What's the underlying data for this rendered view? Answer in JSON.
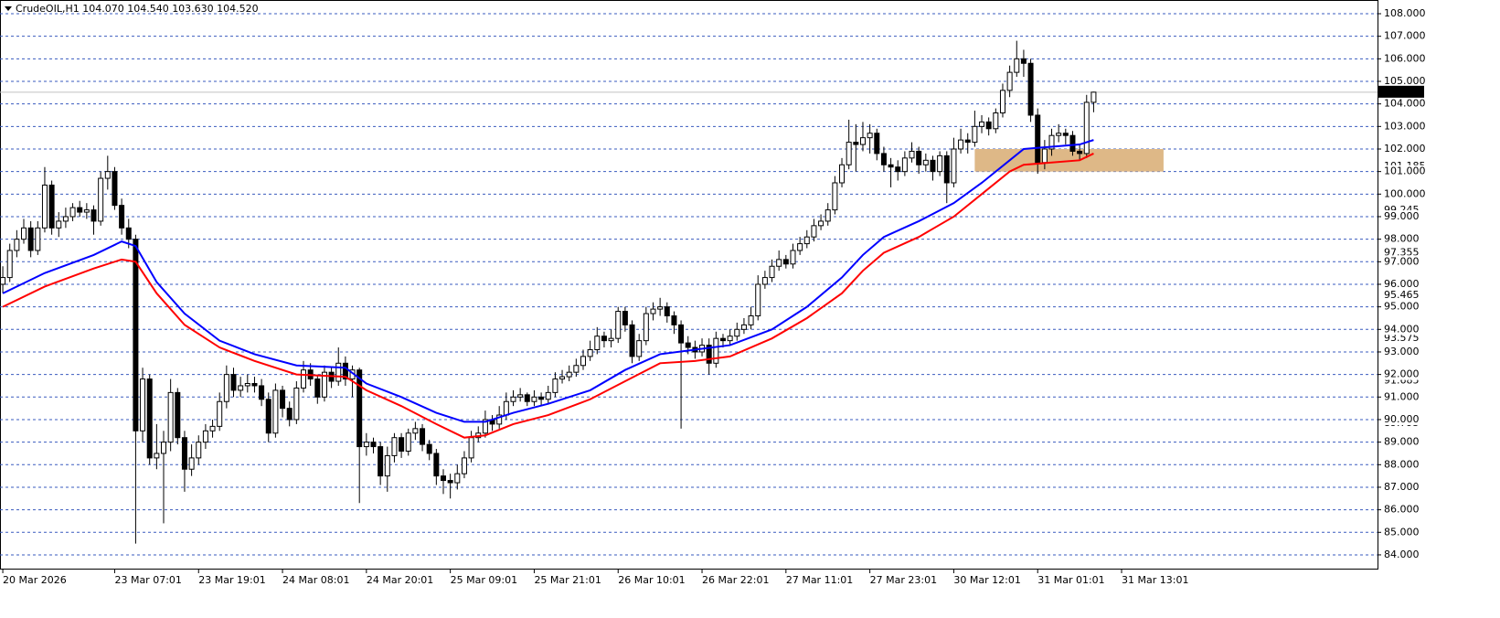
{
  "chart_data": {
    "type": "candlestick",
    "title": "CrudeOIL,H1  104.070 104.540 103.630 104.520",
    "ylim": [
      83.39,
      108.527
    ],
    "xlim": [
      -0.4,
      196.6
    ],
    "yticks": [
      {
        "value": 84,
        "label": "84.000"
      },
      {
        "value": 85,
        "label": "85.000"
      },
      {
        "value": 86,
        "label": "86.000"
      },
      {
        "value": 87,
        "label": "87.000"
      },
      {
        "value": 88,
        "label": "88.000"
      },
      {
        "value": 89,
        "label": "89.000"
      },
      {
        "value": 90,
        "label": "90.000"
      },
      {
        "value": 91,
        "label": "91.000"
      },
      {
        "value": 92,
        "label": "92.000"
      },
      {
        "value": 93,
        "label": "93.000"
      },
      {
        "value": 94,
        "label": "94.000"
      },
      {
        "value": 95,
        "label": "95.000"
      },
      {
        "value": 96,
        "label": "96.000"
      },
      {
        "value": 97,
        "label": "97.000"
      },
      {
        "value": 98,
        "label": "98.000"
      },
      {
        "value": 99,
        "label": "99.000"
      },
      {
        "value": 100,
        "label": "100.000"
      },
      {
        "value": 101,
        "label": "101.000"
      },
      {
        "value": 102,
        "label": "102.000"
      },
      {
        "value": 103,
        "label": "103.000"
      },
      {
        "value": 104,
        "label": "104.000"
      },
      {
        "value": 105,
        "label": "105.000"
      },
      {
        "value": 106,
        "label": "106.000"
      },
      {
        "value": 107,
        "label": "107.000"
      },
      {
        "value": 108,
        "label": "108.000"
      }
    ],
    "levels": [
      101.185,
      99.245,
      97.355,
      95.465,
      93.575,
      91.685,
      89.795
    ],
    "last_price": {
      "value": 104.52,
      "label": "104.520"
    },
    "xticks": [
      {
        "value": 0,
        "label": "20 Mar 2026"
      },
      {
        "value": 16,
        "label": "23 Mar 07:01"
      },
      {
        "value": 28,
        "label": "23 Mar 19:01"
      },
      {
        "value": 40,
        "label": "24 Mar 08:01"
      },
      {
        "value": 52,
        "label": "24 Mar 20:01"
      },
      {
        "value": 64,
        "label": "25 Mar 09:01"
      },
      {
        "value": 76,
        "label": "25 Mar 21:01"
      },
      {
        "value": 88,
        "label": "26 Mar 10:01"
      },
      {
        "value": 100,
        "label": "26 Mar 22:01"
      },
      {
        "value": 112,
        "label": "27 Mar 11:01"
      },
      {
        "value": 124,
        "label": "27 Mar 23:01"
      },
      {
        "value": 136,
        "label": "30 Mar 12:01"
      },
      {
        "value": 148,
        "label": "31 Mar 01:01"
      },
      {
        "value": 160,
        "label": "31 Mar 13:01"
      }
    ],
    "zone": {
      "x": [
        139,
        166
      ],
      "y": [
        101,
        102
      ],
      "color": "#deb887"
    },
    "candles": [
      [
        96.0,
        96.8,
        95.6,
        96.3
      ],
      [
        96.3,
        97.8,
        96.1,
        97.5
      ],
      [
        97.5,
        98.4,
        97.2,
        98
      ],
      [
        98,
        98.9,
        97.8,
        98.5
      ],
      [
        98.5,
        98.8,
        97.2,
        97.5
      ],
      [
        97.5,
        98.8,
        97.3,
        98.5
      ],
      [
        98.5,
        101.2,
        98.3,
        100.4
      ],
      [
        100.4,
        100.6,
        98.2,
        98.5
      ],
      [
        98.5,
        99.2,
        98.1,
        98.8
      ],
      [
        98.8,
        99.4,
        98.5,
        99
      ],
      [
        99,
        99.6,
        98.8,
        99.4
      ],
      [
        99.4,
        99.7,
        99,
        99.2
      ],
      [
        99.2,
        99.6,
        98.9,
        99.3
      ],
      [
        99.3,
        99.5,
        98.2,
        98.8
      ],
      [
        98.8,
        101,
        98.6,
        100.7
      ],
      [
        100.7,
        101.7,
        100.2,
        101
      ],
      [
        101,
        101.2,
        99.3,
        99.5
      ],
      [
        99.5,
        99.8,
        98.2,
        98.5
      ],
      [
        98.5,
        98.9,
        97.6,
        98
      ],
      [
        98,
        98.2,
        84.5,
        89.5
      ],
      [
        89.5,
        92.3,
        89,
        91.8
      ],
      [
        91.8,
        92,
        88,
        88.3
      ],
      [
        88.3,
        89.8,
        87.8,
        88.5
      ],
      [
        88.5,
        89.5,
        85.4,
        89
      ],
      [
        89,
        91.8,
        88.6,
        91.2
      ],
      [
        91.2,
        91.4,
        88.9,
        89.2
      ],
      [
        89.2,
        89.5,
        86.8,
        87.8
      ],
      [
        87.8,
        88.9,
        87.5,
        88.3
      ],
      [
        88.3,
        89.3,
        88,
        89
      ],
      [
        89,
        89.8,
        88.7,
        89.5
      ],
      [
        89.5,
        90,
        89.2,
        89.7
      ],
      [
        89.7,
        91.2,
        89.5,
        90.8
      ],
      [
        90.8,
        92.4,
        90.5,
        92
      ],
      [
        92,
        92.3,
        91,
        91.3
      ],
      [
        91.3,
        91.9,
        91,
        91.5
      ],
      [
        91.5,
        92,
        91.2,
        91.6
      ],
      [
        91.6,
        91.9,
        91.2,
        91.5
      ],
      [
        91.5,
        91.8,
        90.6,
        90.9
      ],
      [
        90.9,
        91.2,
        89,
        89.4
      ],
      [
        89.4,
        91.6,
        89.2,
        91.3
      ],
      [
        91.3,
        91.5,
        90.1,
        90.5
      ],
      [
        90.5,
        90.8,
        89.7,
        90
      ],
      [
        90,
        91.7,
        89.8,
        91.4
      ],
      [
        91.4,
        92.6,
        91.2,
        92.2
      ],
      [
        92.2,
        92.5,
        91.5,
        91.8
      ],
      [
        91.8,
        92,
        90.7,
        91
      ],
      [
        91,
        92.4,
        90.8,
        92.1
      ],
      [
        92.1,
        92.3,
        91.4,
        91.7
      ],
      [
        91.7,
        93.2,
        91.5,
        92.5
      ],
      [
        92.5,
        92.8,
        91.5,
        91.8
      ],
      [
        91.8,
        92.4,
        91,
        92.2
      ],
      [
        92.2,
        92.3,
        86.3,
        88.8
      ],
      [
        88.8,
        89.4,
        88.4,
        89
      ],
      [
        89,
        89.2,
        88.5,
        88.8
      ],
      [
        88.8,
        89,
        87.1,
        87.5
      ],
      [
        87.5,
        88.8,
        86.8,
        88.4
      ],
      [
        88.4,
        89.4,
        88.1,
        89.2
      ],
      [
        89.2,
        89.4,
        88.3,
        88.6
      ],
      [
        88.6,
        89.6,
        88.4,
        89.4
      ],
      [
        89.4,
        89.9,
        89.1,
        89.6
      ],
      [
        89.6,
        89.8,
        88.6,
        88.9
      ],
      [
        88.9,
        89.1,
        88.2,
        88.5
      ],
      [
        88.5,
        88.7,
        87.1,
        87.5
      ],
      [
        87.5,
        87.8,
        86.7,
        87.3
      ],
      [
        87.3,
        87.6,
        86.5,
        87.2
      ],
      [
        87.2,
        88,
        86.9,
        87.6
      ],
      [
        87.6,
        88.6,
        87.4,
        88.3
      ],
      [
        88.3,
        89.5,
        88.1,
        89.2
      ],
      [
        89.2,
        89.7,
        89,
        89.4
      ],
      [
        89.4,
        90.4,
        89.2,
        90
      ],
      [
        90,
        90.2,
        89.5,
        89.8
      ],
      [
        89.8,
        90.6,
        89.6,
        90.2
      ],
      [
        90.2,
        91.2,
        90,
        90.8
      ],
      [
        90.8,
        91.3,
        90.6,
        91
      ],
      [
        91,
        91.4,
        90.8,
        91.1
      ],
      [
        91.1,
        91.2,
        90.6,
        90.8
      ],
      [
        90.8,
        91.3,
        90.6,
        91
      ],
      [
        91,
        91.2,
        90.6,
        90.9
      ],
      [
        90.9,
        91.5,
        90.7,
        91.2
      ],
      [
        91.2,
        92.1,
        91,
        91.8
      ],
      [
        91.8,
        92.2,
        91.6,
        91.9
      ],
      [
        91.9,
        92.4,
        91.7,
        92.1
      ],
      [
        92.1,
        92.7,
        91.9,
        92.4
      ],
      [
        92.4,
        93.1,
        92.2,
        92.8
      ],
      [
        92.8,
        93.5,
        92.6,
        93.1
      ],
      [
        93.1,
        94.1,
        92.9,
        93.7
      ],
      [
        93.7,
        93.9,
        93.2,
        93.5
      ],
      [
        93.5,
        94,
        93.2,
        93.6
      ],
      [
        93.6,
        95,
        93.4,
        94.8
      ],
      [
        94.8,
        95,
        93.9,
        94.2
      ],
      [
        94.2,
        94.4,
        92.5,
        92.8
      ],
      [
        92.8,
        93.8,
        92.6,
        93.5
      ],
      [
        93.5,
        95,
        93.3,
        94.7
      ],
      [
        94.7,
        95.2,
        94.4,
        94.9
      ],
      [
        94.9,
        95.4,
        94.6,
        95
      ],
      [
        95,
        95.2,
        94.3,
        94.6
      ],
      [
        94.6,
        94.8,
        93.8,
        94.2
      ],
      [
        94.2,
        94.4,
        89.6,
        93.4
      ],
      [
        93.4,
        93.7,
        92.9,
        93.2
      ],
      [
        93.2,
        93.5,
        92.7,
        93
      ],
      [
        93,
        93.6,
        92.8,
        93.3
      ],
      [
        93.3,
        93.6,
        92,
        92.5
      ],
      [
        92.5,
        93.9,
        92.3,
        93.6
      ],
      [
        93.6,
        93.8,
        93.2,
        93.5
      ],
      [
        93.5,
        94,
        93.3,
        93.7
      ],
      [
        93.7,
        94.3,
        93.5,
        94
      ],
      [
        94,
        94.5,
        93.8,
        94.2
      ],
      [
        94.2,
        95,
        94,
        94.6
      ],
      [
        94.6,
        96.4,
        94.4,
        96
      ],
      [
        96,
        96.6,
        95.8,
        96.3
      ],
      [
        96.3,
        97.1,
        96.1,
        96.8
      ],
      [
        96.8,
        97.5,
        96.6,
        97.1
      ],
      [
        97.1,
        97.3,
        96.7,
        96.9
      ],
      [
        96.9,
        97.8,
        96.7,
        97.5
      ],
      [
        97.5,
        98.1,
        97.3,
        97.8
      ],
      [
        97.8,
        98.4,
        97.6,
        98.1
      ],
      [
        98.1,
        98.9,
        97.9,
        98.6
      ],
      [
        98.6,
        99.1,
        98.4,
        98.8
      ],
      [
        98.8,
        99.6,
        98.6,
        99.3
      ],
      [
        99.3,
        100.8,
        99.1,
        100.5
      ],
      [
        100.5,
        101.6,
        100.3,
        101.3
      ],
      [
        101.3,
        103.3,
        101.1,
        102.3
      ],
      [
        102.3,
        103.1,
        101,
        102.2
      ],
      [
        102.2,
        103.2,
        101.9,
        102.5
      ],
      [
        102.5,
        103.1,
        101.8,
        102.7
      ],
      [
        102.7,
        102.9,
        101.5,
        101.8
      ],
      [
        101.8,
        102.1,
        101,
        101.3
      ],
      [
        101.3,
        101.6,
        100.3,
        101.2
      ],
      [
        101.2,
        101.5,
        100.6,
        101
      ],
      [
        101,
        101.9,
        100.8,
        101.6
      ],
      [
        101.6,
        102.3,
        101.4,
        101.9
      ],
      [
        101.9,
        102.1,
        100.9,
        101.3
      ],
      [
        101.3,
        101.8,
        101,
        101.5
      ],
      [
        101.5,
        101.7,
        100.6,
        101
      ],
      [
        101,
        101.9,
        100.8,
        101.7
      ],
      [
        101.7,
        101.9,
        99.6,
        100.5
      ],
      [
        100.5,
        102.5,
        100.3,
        102
      ],
      [
        102,
        102.9,
        101.8,
        102.4
      ],
      [
        102.4,
        102.7,
        101.8,
        102.3
      ],
      [
        102.3,
        103.7,
        102.1,
        103
      ],
      [
        103,
        103.5,
        102.7,
        103.2
      ],
      [
        103.2,
        103.4,
        102.6,
        102.9
      ],
      [
        102.9,
        103.8,
        102.7,
        103.6
      ],
      [
        103.6,
        104.9,
        103.4,
        104.6
      ],
      [
        104.6,
        105.7,
        104.3,
        105.4
      ],
      [
        105.4,
        106.8,
        105.2,
        106
      ],
      [
        106,
        106.4,
        105.2,
        105.8
      ],
      [
        105.8,
        106,
        103.2,
        103.5
      ],
      [
        103.5,
        103.8,
        100.9,
        101.4
      ],
      [
        101.4,
        102.4,
        101.1,
        102
      ],
      [
        102,
        102.9,
        101.7,
        102.6
      ],
      [
        102.6,
        103.1,
        102.3,
        102.7
      ],
      [
        102.7,
        102.9,
        102.2,
        102.6
      ],
      [
        102.6,
        102.8,
        101.7,
        101.9
      ],
      [
        101.9,
        102.2,
        101.5,
        101.8
      ],
      [
        101.8,
        104.4,
        101.6,
        104.07
      ],
      [
        104.07,
        104.54,
        103.63,
        104.52
      ]
    ],
    "lines": [
      {
        "color": "#0000ff",
        "x": [
          0,
          6,
          13,
          17,
          19,
          22,
          26,
          31,
          36,
          42,
          49,
          52,
          57,
          62,
          66,
          69,
          73,
          78,
          84,
          89,
          94,
          99,
          104,
          110,
          115,
          120,
          123,
          126,
          131,
          136,
          140,
          144,
          146,
          150,
          154,
          156
        ],
        "values": [
          95.6,
          96.5,
          97.3,
          97.9,
          97.7,
          96.1,
          94.7,
          93.5,
          92.9,
          92.4,
          92.3,
          91.6,
          91,
          90.3,
          89.9,
          89.9,
          90.3,
          90.7,
          91.3,
          92.2,
          92.9,
          93.1,
          93.3,
          94,
          95,
          96.3,
          97.3,
          98.1,
          98.8,
          99.6,
          100.5,
          101.5,
          102,
          102.1,
          102.2,
          102.4
        ]
      },
      {
        "color": "#ff0000",
        "x": [
          0,
          6,
          13,
          17,
          19,
          22,
          26,
          31,
          36,
          42,
          49,
          52,
          57,
          62,
          66,
          69,
          73,
          78,
          84,
          89,
          94,
          99,
          104,
          110,
          115,
          120,
          123,
          126,
          131,
          136,
          140,
          144,
          146,
          150,
          154,
          156
        ],
        "values": [
          95,
          95.9,
          96.7,
          97.1,
          97,
          95.6,
          94.2,
          93.2,
          92.6,
          92,
          91.9,
          91.3,
          90.6,
          89.8,
          89.2,
          89.3,
          89.8,
          90.2,
          90.9,
          91.7,
          92.5,
          92.6,
          92.8,
          93.6,
          94.5,
          95.6,
          96.6,
          97.4,
          98.1,
          99,
          100,
          101,
          101.3,
          101.4,
          101.5,
          101.8
        ]
      }
    ]
  }
}
